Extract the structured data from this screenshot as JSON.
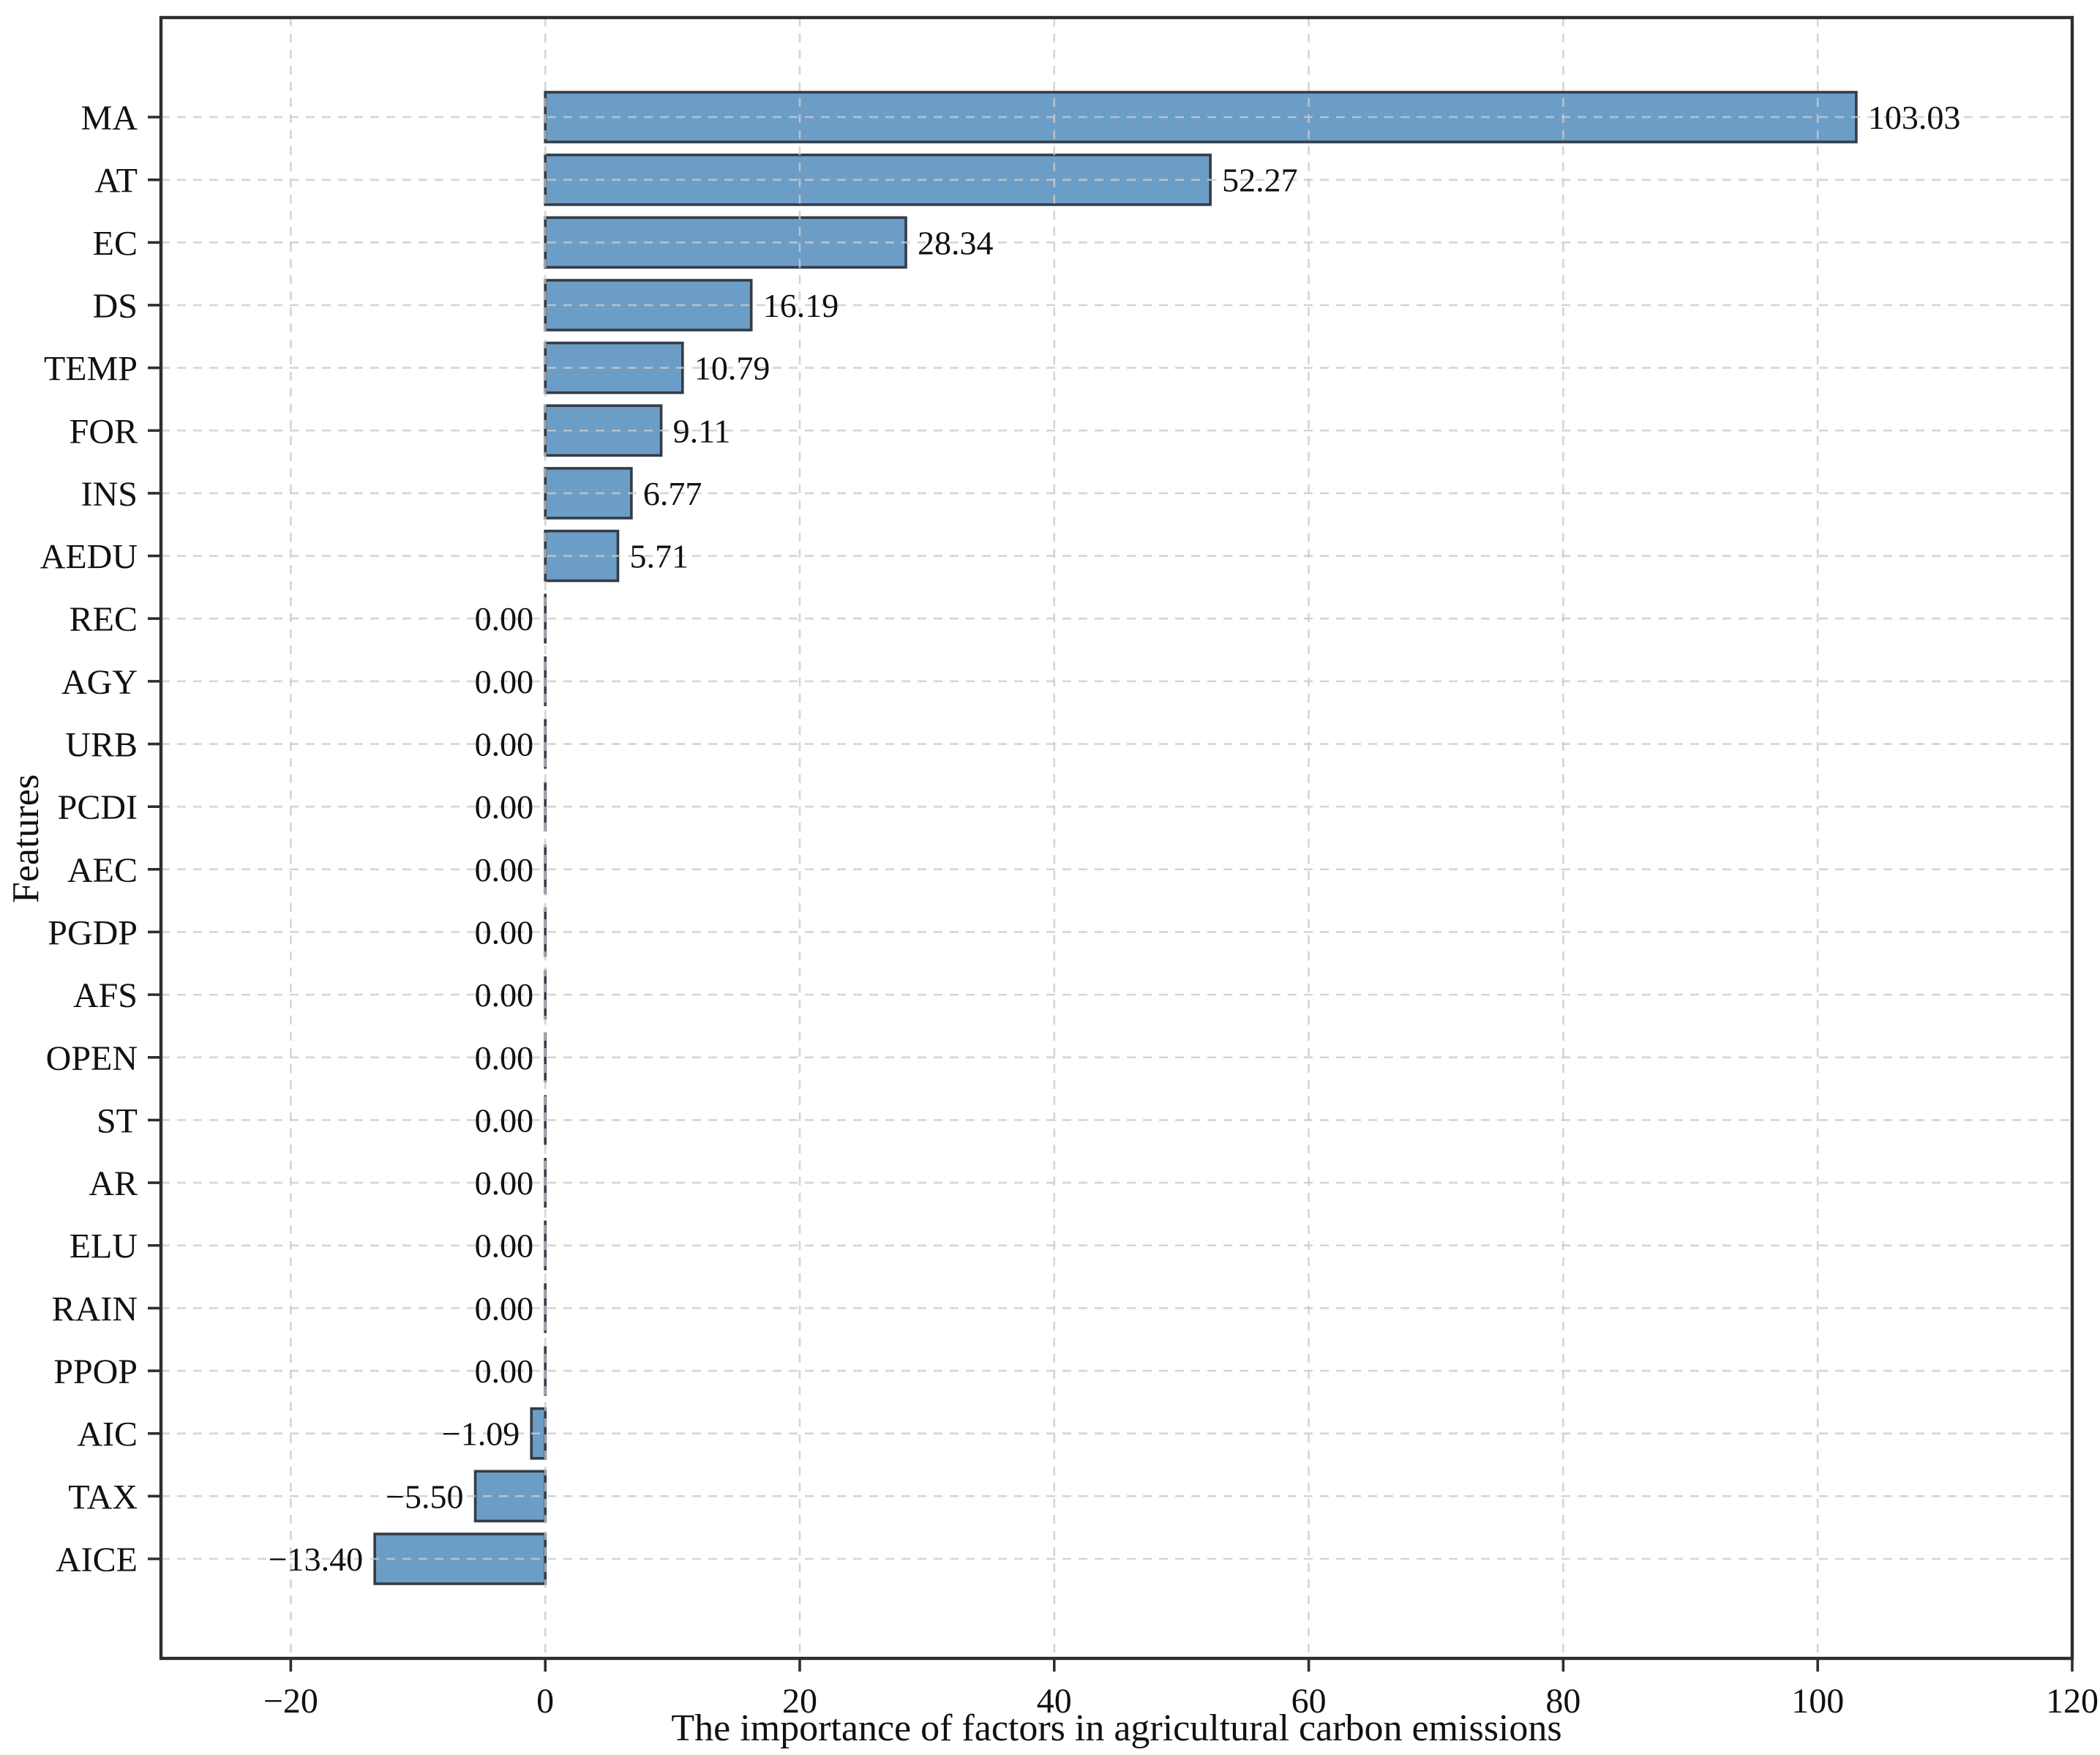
{
  "figure": {
    "background": "#ffffff"
  },
  "chart_data": {
    "type": "bar",
    "orientation": "horizontal",
    "title": "",
    "xlabel": "The importance of factors in agricultural carbon emissions",
    "ylabel": "Features",
    "categories": [
      "MA",
      "AT",
      "EC",
      "DS",
      "TEMP",
      "FOR",
      "INS",
      "AEDU",
      "REC",
      "AGY",
      "URB",
      "PCDI",
      "AEC",
      "PGDP",
      "AFS",
      "OPEN",
      "ST",
      "AR",
      "ELU",
      "RAIN",
      "PPOP",
      "AIC",
      "TAX",
      "AICE"
    ],
    "values": [
      103.03,
      52.27,
      28.34,
      16.19,
      10.79,
      9.11,
      6.77,
      5.71,
      0.0,
      0.0,
      0.0,
      0.0,
      0.0,
      0.0,
      0.0,
      0.0,
      0.0,
      0.0,
      0.0,
      0.0,
      0.0,
      -1.09,
      -5.5,
      -13.4
    ],
    "value_labels": [
      "103.03",
      "52.27",
      "28.34",
      "16.19",
      "10.79",
      "9.11",
      "6.77",
      "5.71",
      "0.00",
      "0.00",
      "0.00",
      "0.00",
      "0.00",
      "0.00",
      "0.00",
      "0.00",
      "0.00",
      "0.00",
      "0.00",
      "0.00",
      "0.00",
      "−1.09",
      "−5.50",
      "−13.40"
    ],
    "xticks": [
      -20,
      0,
      20,
      40,
      60,
      80,
      100,
      120
    ],
    "xtick_labels": [
      "−20",
      "0",
      "20",
      "40",
      "60",
      "80",
      "100",
      "120"
    ],
    "xlim": [
      -30.2,
      120
    ],
    "grid": true,
    "grid_style": "dashed",
    "legend": null,
    "bar_color": "#6C9DC6",
    "bar_edge_color": "#333C47",
    "grid_color": "#CBCBCB",
    "spine_color": "#2E2E2E",
    "text_color": "#111111"
  }
}
